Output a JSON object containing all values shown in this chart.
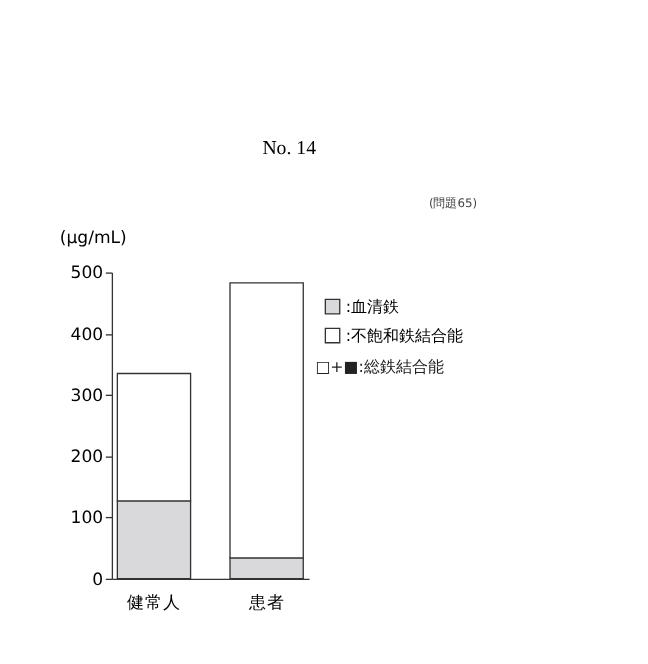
{
  "chart_data": {
    "type": "bar",
    "title": "No.  14",
    "ylabel": "(μg/mL)",
    "stacked": true,
    "legend": "right",
    "categories": [
      "健常人",
      "患者"
    ],
    "series": [
      {
        "name": ":血清鉄",
        "color": "#d9d9dc",
        "values": [
          127,
          34
        ]
      },
      {
        "name": ":不飽和鉄結合能",
        "color": "#ffffff",
        "values": [
          208,
          449
        ]
      }
    ],
    "ylim": [
      0,
      500
    ],
    "yticks": [
      0,
      100,
      200,
      300,
      400,
      500
    ],
    "grid": false,
    "annotations": [
      "(問題65)",
      "□+■:総鉄結合能"
    ]
  }
}
